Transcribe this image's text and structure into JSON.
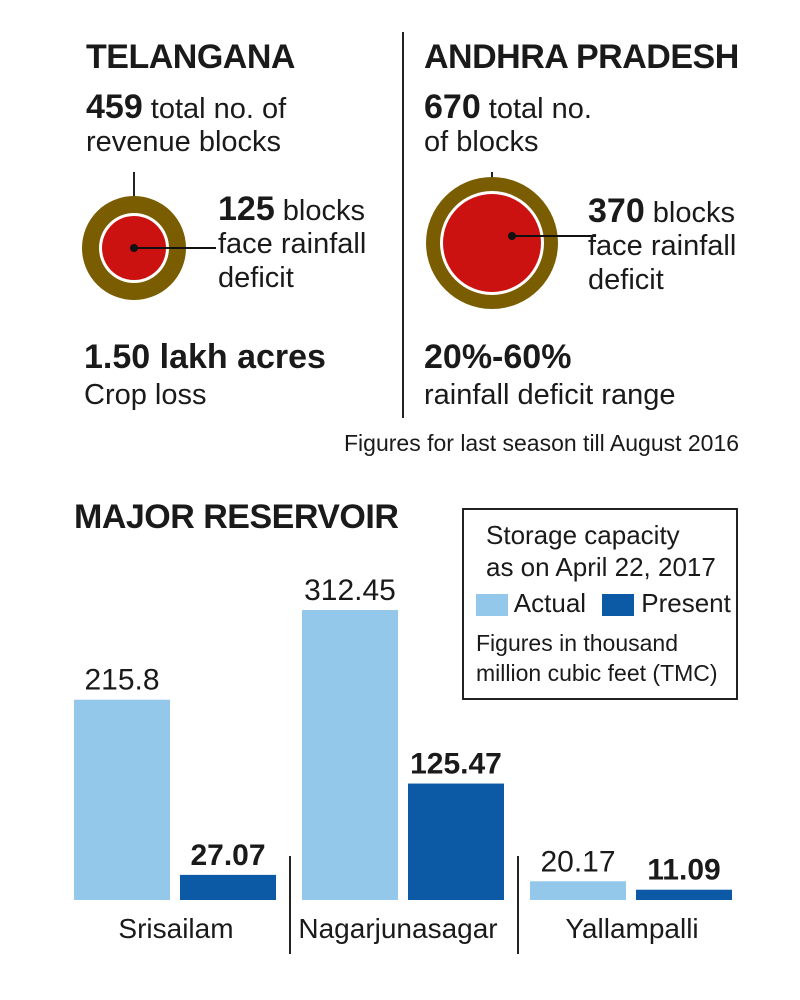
{
  "colors": {
    "outer_ring": "#7a5d00",
    "inner_deficit": "#cc1111",
    "actual": "#93c8ea",
    "present": "#0c5aa6",
    "text": "#1a1a1a"
  },
  "telangana": {
    "title": "TELANGANA",
    "total_value": "459",
    "total_text_1": "total no. of",
    "total_text_2": "revenue blocks",
    "total_blocks": 459,
    "deficit_blocks": 125,
    "deficit_value": "125",
    "deficit_text_1": "blocks",
    "deficit_text_2": "face rainfall",
    "deficit_text_3": "deficit",
    "stat_value": "1.50 lakh acres",
    "stat_label": "Crop loss"
  },
  "andhra": {
    "title": "ANDHRA PRADESH",
    "total_value": "670",
    "total_text_1": "total no.",
    "total_text_2": "of blocks",
    "total_blocks": 670,
    "deficit_blocks": 370,
    "deficit_value": "370",
    "deficit_text_1": "blocks",
    "deficit_text_2": "face rainfall",
    "deficit_text_3": "deficit",
    "stat_value": "20%-60%",
    "stat_label": "rainfall deficit range"
  },
  "footnote": "Figures for last season till August 2016",
  "reservoir": {
    "title": "MAJOR RESERVOIR",
    "legend_title_1": "Storage capacity",
    "legend_title_2": "as on April 22, 2017",
    "legend_actual": "Actual",
    "legend_present": "Present",
    "legend_note_1": "Figures in thousand",
    "legend_note_2": "million cubic feet (TMC)"
  },
  "chart_data": {
    "type": "bar",
    "title": "MAJOR RESERVOIR",
    "categories": [
      "Srisailam",
      "Nagarjunasagar",
      "Yallampalli"
    ],
    "series": [
      {
        "name": "Actual",
        "values": [
          215.8,
          312.45,
          20.17
        ],
        "labels": [
          "215.8",
          "312.45",
          "20.17"
        ]
      },
      {
        "name": "Present",
        "values": [
          27.07,
          125.47,
          11.09
        ],
        "labels": [
          "27.07",
          "125.47",
          "11.09"
        ]
      }
    ],
    "unit": "TMC",
    "ylim": [
      0,
      312.45
    ],
    "grid": false,
    "legend": "top-right"
  }
}
